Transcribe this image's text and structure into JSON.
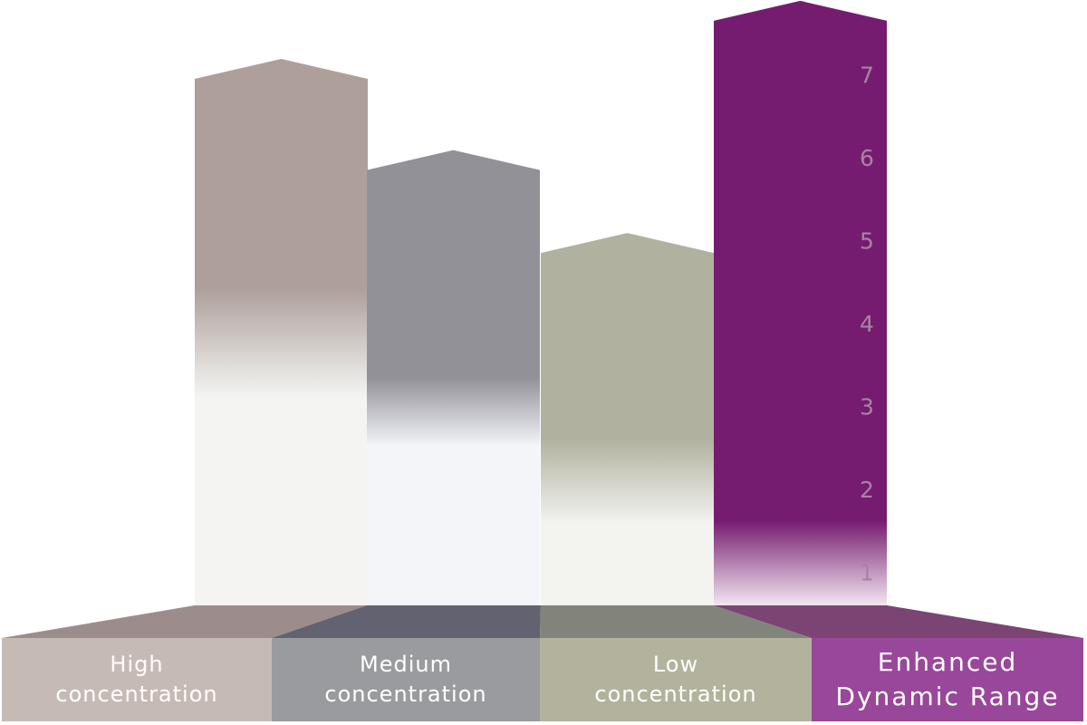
{
  "chart_data": {
    "type": "bar",
    "categories": [
      "High concentration",
      "Medium concentration",
      "Low concentration",
      "Enhanced Dynamic Range"
    ],
    "category_lines": [
      [
        "High",
        "concentration"
      ],
      [
        "Medium",
        "concentration"
      ],
      [
        "Low",
        "concentration"
      ],
      [
        "Enhanced",
        "Dynamic Range"
      ]
    ],
    "values": [
      6.4,
      5.3,
      4.3,
      7.1
    ],
    "y_ticks": [
      "1",
      "2",
      "3",
      "4",
      "5",
      "6",
      "7"
    ],
    "ylim": [
      0,
      7.2
    ],
    "grid": false,
    "colors": {
      "bars": [
        "#ae9f9b",
        "#929198",
        "#b0b19e",
        "#761c70"
      ],
      "bar_fade": [
        "#f4f5f3",
        "#f3f5f9",
        "#f3f3f0",
        "#f2e6f1"
      ],
      "floor": [
        "#9c8d8c",
        "#636270",
        "#82847b",
        "#7b4473"
      ],
      "labels": [
        "#c6bbb4",
        "#9a9b9e",
        "#b3b39d",
        "#99479a"
      ],
      "ticks": "#a983a7"
    }
  }
}
